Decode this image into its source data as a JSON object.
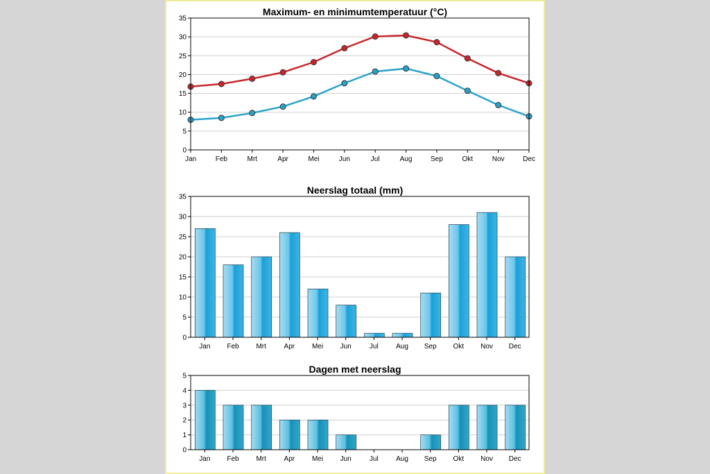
{
  "colors": {
    "max_line": "#c8262b",
    "min_line": "#2aa3c9",
    "bar_light": "#8fd3ee",
    "bar_dark": "#1aa1d9"
  },
  "chart_data": [
    {
      "type": "line",
      "title": "Maximum- en minimumtemperatuur (°C)",
      "categories": [
        "Jan",
        "Feb",
        "Mrt",
        "Apr",
        "Mei",
        "Jun",
        "Jul",
        "Aug",
        "Sep",
        "Okt",
        "Nov",
        "Dec"
      ],
      "series": [
        {
          "values": [
            16.8,
            17.5,
            18.9,
            20.6,
            23.3,
            27.0,
            30.1,
            30.4,
            28.6,
            24.3,
            20.4,
            17.7
          ]
        },
        {
          "values": [
            8.0,
            8.5,
            9.8,
            11.5,
            14.2,
            17.7,
            20.8,
            21.6,
            19.6,
            15.7,
            11.9,
            8.9
          ]
        }
      ],
      "ylim": [
        0,
        35
      ],
      "yticks": [
        "0",
        "5",
        "10",
        "15",
        "20",
        "25",
        "30",
        "35"
      ],
      "grid": true
    },
    {
      "type": "bar",
      "title": "Neerslag totaal (mm)",
      "categories": [
        "Jan",
        "Feb",
        "Mrt",
        "Apr",
        "Mei",
        "Jun",
        "Jul",
        "Aug",
        "Sep",
        "Okt",
        "Nov",
        "Dec"
      ],
      "values": [
        27,
        18,
        20,
        26,
        12,
        8,
        1,
        1,
        11,
        28,
        31,
        20
      ],
      "ylim": [
        0,
        35
      ],
      "yticks": [
        "0",
        "5",
        "10",
        "15",
        "20",
        "25",
        "30",
        "35"
      ],
      "grid": true
    },
    {
      "type": "bar",
      "title": "Dagen met neerslag",
      "categories": [
        "Jan",
        "Feb",
        "Mrt",
        "Apr",
        "Mei",
        "Jun",
        "Jul",
        "Aug",
        "Sep",
        "Okt",
        "Nov",
        "Dec"
      ],
      "values": [
        4,
        3,
        3,
        2,
        2,
        1,
        0,
        0,
        1,
        3,
        3,
        3
      ],
      "ylim": [
        0,
        5
      ],
      "yticks": [
        "0",
        "1",
        "2",
        "3",
        "4",
        "5"
      ],
      "grid": true
    }
  ]
}
